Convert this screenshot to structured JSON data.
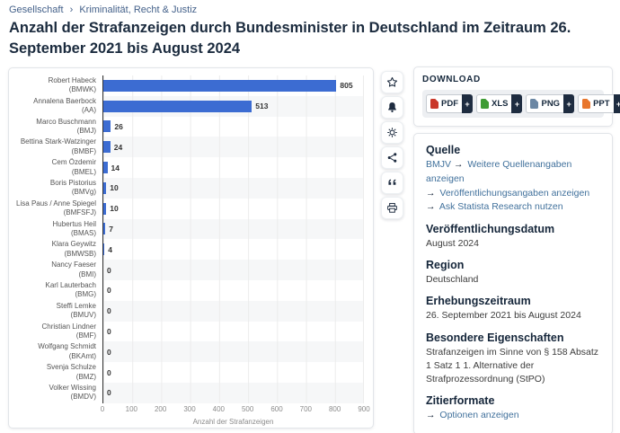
{
  "breadcrumb": {
    "items": [
      "Gesellschaft",
      "Kriminalität, Recht & Justiz"
    ],
    "separator": "›"
  },
  "page_title": "Anzahl der Strafanzeigen durch Bundesminister in Deutschland im Zeitraum 26. September 2021 bis August 2024",
  "chart_data": {
    "type": "bar",
    "orientation": "horizontal",
    "title": "Anzahl der Strafanzeigen durch Bundesminister in Deutschland im Zeitraum 26. September 2021 bis August 2024",
    "categories": [
      "Robert Habeck (BMWK)",
      "Annalena Baerbock (AA)",
      "Marco Buschmann (BMJ)",
      "Bettina Stark-Watzinger (BMBF)",
      "Cem Özdemir (BMEL)",
      "Boris Pistorius (BMVg)",
      "Lisa Paus / Anne Spiegel (BMFSFJ)",
      "Hubertus Heil (BMAS)",
      "Klara Geywitz (BMWSB)",
      "Nancy Faeser (BMI)",
      "Karl Lauterbach (BMG)",
      "Steffi Lemke (BMUV)",
      "Christian Lindner (BMF)",
      "Wolfgang Schmidt (BKAmt)",
      "Svenja Schulze (BMZ)",
      "Volker Wissing (BMDV)"
    ],
    "category_lines": [
      [
        "Robert Habeck",
        "(BMWK)"
      ],
      [
        "Annalena Baerbock",
        "(AA)"
      ],
      [
        "Marco Buschmann",
        "(BMJ)"
      ],
      [
        "Bettina Stark-Watzinger",
        "(BMBF)"
      ],
      [
        "Cem Özdemir",
        "(BMEL)"
      ],
      [
        "Boris Pistorius",
        "(BMVg)"
      ],
      [
        "Lisa Paus / Anne Spiegel",
        "(BMFSFJ)"
      ],
      [
        "Hubertus Heil",
        "(BMAS)"
      ],
      [
        "Klara Geywitz",
        "(BMWSB)"
      ],
      [
        "Nancy Faeser",
        "(BMI)"
      ],
      [
        "Karl Lauterbach",
        "(BMG)"
      ],
      [
        "Steffi Lemke",
        "(BMUV)"
      ],
      [
        "Christian Lindner",
        "(BMF)"
      ],
      [
        "Wolfgang Schmidt",
        "(BKAmt)"
      ],
      [
        "Svenja Schulze",
        "(BMZ)"
      ],
      [
        "Volker Wissing",
        "(BMDV)"
      ]
    ],
    "values": [
      805,
      513,
      26,
      24,
      14,
      10,
      10,
      7,
      4,
      0,
      0,
      0,
      0,
      0,
      0,
      0
    ],
    "xlabel": "Anzahl der Strafanzeigen",
    "xlim": [
      0,
      900
    ],
    "xticks": [
      0,
      100,
      200,
      300,
      400,
      500,
      600,
      700,
      800,
      900
    ],
    "grid": true,
    "bar_color": "#3c6cd2",
    "zebra_color": "#f6f7f8"
  },
  "toolbar": {
    "icons": [
      "star-icon",
      "bell-icon",
      "gear-icon",
      "share-icon",
      "quote-icon",
      "print-icon"
    ]
  },
  "download": {
    "heading": "DOWNLOAD",
    "plus_label": "+",
    "formats": [
      {
        "label": "PDF",
        "color": "#c9382b"
      },
      {
        "label": "XLS",
        "color": "#3f9c35"
      },
      {
        "label": "PNG",
        "color": "#6b87a4"
      },
      {
        "label": "PPT",
        "color": "#e8762c"
      }
    ]
  },
  "info": {
    "quelle": {
      "heading": "Quelle",
      "source": "BMJV",
      "arrow": "→",
      "links": [
        "Weitere Quellenangaben anzeigen",
        "Veröffentlichungsangaben anzeigen",
        "Ask Statista Research nutzen"
      ]
    },
    "veroeffentlichungsdatum": {
      "heading": "Veröffentlichungsdatum",
      "value": "August 2024"
    },
    "region": {
      "heading": "Region",
      "value": "Deutschland"
    },
    "erhebungszeitraum": {
      "heading": "Erhebungszeitraum",
      "value": "26. September 2021 bis August 2024"
    },
    "besondere_eigenschaften": {
      "heading": "Besondere Eigenschaften",
      "value": "Strafanzeigen im Sinne von § 158 Absatz 1 Satz 1 1. Alternative der Strafprozessordnung (StPO)"
    },
    "zitierformate": {
      "heading": "Zitierformate",
      "arrow": "→",
      "link": "Optionen anzeigen"
    }
  },
  "colors": {
    "navy": "#1e2c40",
    "link_blue": "#41719c",
    "title_text": "#1b2b3e"
  }
}
